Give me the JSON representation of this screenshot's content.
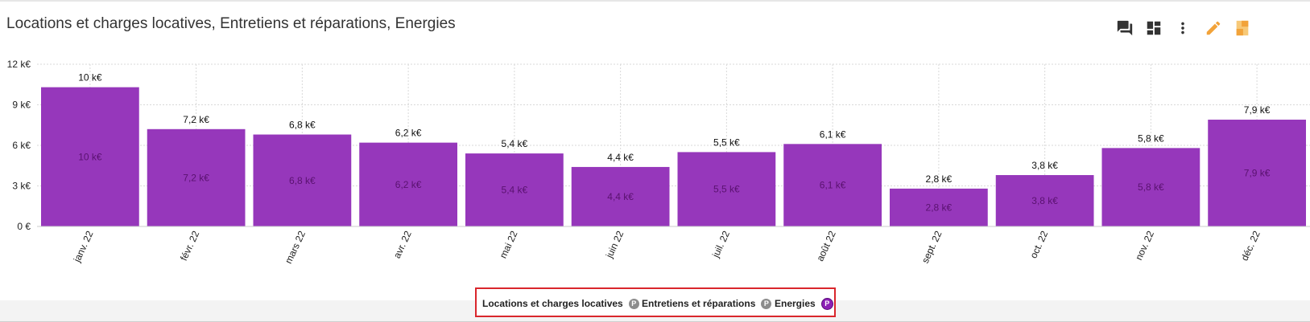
{
  "title": "Locations et charges locatives, Entretiens et réparations, Energies",
  "toolbar": {
    "icons": [
      "comments-icon",
      "dashboard-icon",
      "more-vert-icon",
      "edit-pencil-icon",
      "bookmark-icon"
    ],
    "colors": {
      "neutral": "#333333",
      "accent": "#f2a33a",
      "accent_light": "#f7c978"
    }
  },
  "colors": {
    "bar": "#9637bb",
    "inner_label": "#5a1270",
    "grid": "#d9d9d9",
    "legend_badge_inactive": "#8c8c8c",
    "legend_badge_active": "#8c1fb5",
    "legend_border": "#d9262c"
  },
  "legend": [
    {
      "label": "Locations et charges locatives",
      "badge": "P",
      "active": false
    },
    {
      "label": "Entretiens et réparations",
      "badge": "P",
      "active": false
    },
    {
      "label": "Energies",
      "badge": "P",
      "active": true
    }
  ],
  "chart_data": {
    "type": "bar",
    "categories": [
      "janv. 22",
      "févr. 22",
      "mars 22",
      "avr. 22",
      "mai 22",
      "juin 22",
      "juil. 22",
      "août 22",
      "sept. 22",
      "oct. 22",
      "nov. 22",
      "déc. 22"
    ],
    "values": [
      10.3,
      7.2,
      6.8,
      6.2,
      5.4,
      4.4,
      5.5,
      6.1,
      2.8,
      3.8,
      5.8,
      7.9
    ],
    "value_labels": [
      "10 k€",
      "7,2 k€",
      "6,8 k€",
      "6,2 k€",
      "5,4 k€",
      "4,4 k€",
      "5,5 k€",
      "6,1 k€",
      "2,8 k€",
      "3,8 k€",
      "5,8 k€",
      "7,9 k€"
    ],
    "yticks": [
      0,
      3,
      6,
      9,
      12
    ],
    "ytick_labels": [
      "0 €",
      "3 k€",
      "6 k€",
      "9 k€",
      "12 k€"
    ],
    "ylim": [
      0,
      12
    ],
    "grid": true,
    "legend_position": "bottom-center"
  }
}
